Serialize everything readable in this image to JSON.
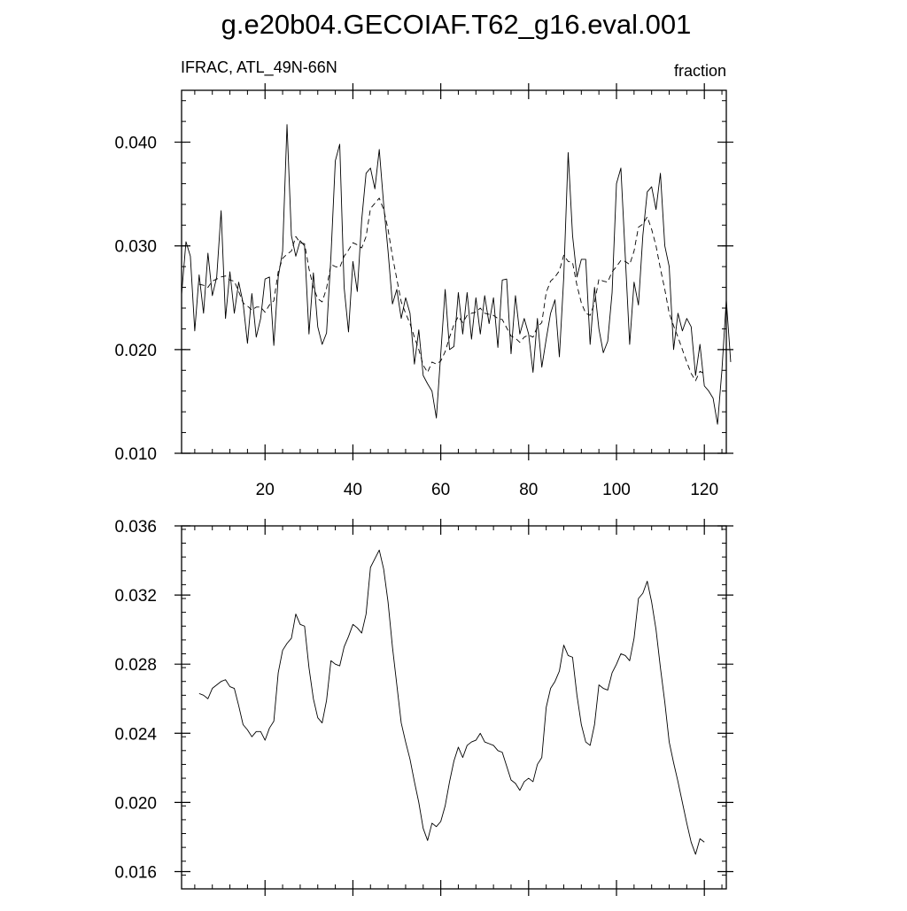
{
  "header": {
    "title": "g.e20b04.GECOIAF.T62_g16.eval.001"
  },
  "chart_data": [
    {
      "type": "line",
      "left_label": "IFRAC, ATL_49N-66N",
      "right_label": "fraction",
      "xlim": [
        1,
        125
      ],
      "ylim": [
        0.01,
        0.045
      ],
      "x_ticks": [
        20,
        40,
        60,
        80,
        100,
        120
      ],
      "y_ticks": [
        0.01,
        0.02,
        0.03,
        0.04
      ],
      "x_tick_labels": [
        "20",
        "40",
        "60",
        "80",
        "100",
        "120"
      ],
      "y_tick_labels": [
        "0.010",
        "0.020",
        "0.030",
        "0.040"
      ],
      "series": [
        {
          "style": "solid",
          "x_start": 1,
          "values": [
            0.0253,
            0.0304,
            0.029,
            0.0218,
            0.0272,
            0.0235,
            0.0293,
            0.0252,
            0.027,
            0.0334,
            0.023,
            0.0275,
            0.0235,
            0.0265,
            0.0245,
            0.0206,
            0.0254,
            0.0212,
            0.023,
            0.0268,
            0.027,
            0.0204,
            0.027,
            0.0295,
            0.0417,
            0.031,
            0.029,
            0.0305,
            0.03,
            0.0215,
            0.0274,
            0.0222,
            0.0205,
            0.0216,
            0.029,
            0.0382,
            0.0398,
            0.026,
            0.0217,
            0.0285,
            0.0256,
            0.0325,
            0.037,
            0.0375,
            0.0355,
            0.0393,
            0.034,
            0.0295,
            0.0244,
            0.0258,
            0.023,
            0.025,
            0.0235,
            0.0186,
            0.0219,
            0.0175,
            0.0167,
            0.016,
            0.0134,
            0.0196,
            0.0258,
            0.02,
            0.0203,
            0.0255,
            0.0215,
            0.0255,
            0.021,
            0.025,
            0.0215,
            0.0252,
            0.0225,
            0.025,
            0.0202,
            0.0267,
            0.0268,
            0.0196,
            0.0252,
            0.0215,
            0.023,
            0.0215,
            0.0178,
            0.023,
            0.0183,
            0.021,
            0.0235,
            0.0248,
            0.0193,
            0.027,
            0.039,
            0.031,
            0.027,
            0.0287,
            0.0287,
            0.0205,
            0.026,
            0.022,
            0.0197,
            0.0208,
            0.0255,
            0.036,
            0.0375,
            0.029,
            0.0205,
            0.0265,
            0.0243,
            0.031,
            0.0352,
            0.0357,
            0.0335,
            0.037,
            0.03,
            0.028,
            0.02,
            0.0235,
            0.0218,
            0.023,
            0.0222,
            0.0175,
            0.0205,
            0.0165,
            0.016,
            0.0153,
            0.0128,
            0.018,
            0.0248,
            0.0188
          ]
        },
        {
          "style": "dashed",
          "x_start": 5,
          "values": [
            0.0263,
            0.0262,
            0.026,
            0.0266,
            0.0268,
            0.027,
            0.0271,
            0.0267,
            0.0266,
            0.0256,
            0.0245,
            0.0242,
            0.0238,
            0.0241,
            0.0241,
            0.0236,
            0.0243,
            0.0247,
            0.0275,
            0.0288,
            0.0292,
            0.0295,
            0.0309,
            0.0303,
            0.0302,
            0.0278,
            0.026,
            0.0249,
            0.0246,
            0.0259,
            0.0282,
            0.028,
            0.0279,
            0.029,
            0.0296,
            0.0303,
            0.0301,
            0.0298,
            0.0309,
            0.0336,
            0.0341,
            0.0346,
            0.0335,
            0.0316,
            0.029,
            0.0268,
            0.0246,
            0.0235,
            0.0225,
            0.0212,
            0.02,
            0.0185,
            0.0178,
            0.0188,
            0.0186,
            0.0189,
            0.0198,
            0.0212,
            0.0224,
            0.0232,
            0.0226,
            0.0233,
            0.0235,
            0.0236,
            0.024,
            0.0235,
            0.0234,
            0.0233,
            0.023,
            0.0229,
            0.0221,
            0.0213,
            0.0211,
            0.0207,
            0.0212,
            0.0214,
            0.0212,
            0.0222,
            0.0226,
            0.0255,
            0.0266,
            0.027,
            0.0276,
            0.0291,
            0.0285,
            0.0284,
            0.0262,
            0.0245,
            0.0235,
            0.0233,
            0.0245,
            0.0268,
            0.0266,
            0.0265,
            0.0275,
            0.028,
            0.0286,
            0.0285,
            0.0282,
            0.0295,
            0.0318,
            0.0321,
            0.0328,
            0.0316,
            0.03,
            0.0278,
            0.0258,
            0.0235,
            0.0223,
            0.0212,
            0.02,
            0.0188,
            0.0177,
            0.017,
            0.0179,
            0.0177
          ]
        }
      ]
    },
    {
      "type": "line",
      "xlim": [
        1,
        125
      ],
      "ylim": [
        0.015,
        0.036
      ],
      "y_ticks": [
        0.016,
        0.02,
        0.024,
        0.028,
        0.032,
        0.036
      ],
      "y_tick_labels": [
        "0.016",
        "0.020",
        "0.024",
        "0.028",
        "0.032",
        "0.036"
      ],
      "x_ticks": [
        20,
        40,
        60,
        80,
        100,
        120
      ],
      "series": [
        {
          "style": "solid",
          "x_start": 5,
          "values": [
            0.0263,
            0.0262,
            0.026,
            0.0266,
            0.0268,
            0.027,
            0.0271,
            0.0267,
            0.0266,
            0.0256,
            0.0245,
            0.0242,
            0.0238,
            0.0241,
            0.0241,
            0.0236,
            0.0243,
            0.0247,
            0.0275,
            0.0288,
            0.0292,
            0.0295,
            0.0309,
            0.0303,
            0.0302,
            0.0278,
            0.026,
            0.0249,
            0.0246,
            0.0259,
            0.0282,
            0.028,
            0.0279,
            0.029,
            0.0296,
            0.0303,
            0.0301,
            0.0298,
            0.0309,
            0.0336,
            0.0341,
            0.0346,
            0.0335,
            0.0316,
            0.029,
            0.0268,
            0.0246,
            0.0235,
            0.0225,
            0.0212,
            0.02,
            0.0185,
            0.0178,
            0.0188,
            0.0186,
            0.0189,
            0.0198,
            0.0212,
            0.0224,
            0.0232,
            0.0226,
            0.0233,
            0.0235,
            0.0236,
            0.024,
            0.0235,
            0.0234,
            0.0233,
            0.023,
            0.0229,
            0.0221,
            0.0213,
            0.0211,
            0.0207,
            0.0212,
            0.0214,
            0.0212,
            0.0222,
            0.0226,
            0.0255,
            0.0266,
            0.027,
            0.0276,
            0.0291,
            0.0285,
            0.0284,
            0.0262,
            0.0245,
            0.0235,
            0.0233,
            0.0245,
            0.0268,
            0.0266,
            0.0265,
            0.0275,
            0.028,
            0.0286,
            0.0285,
            0.0282,
            0.0295,
            0.0318,
            0.0321,
            0.0328,
            0.0316,
            0.03,
            0.0278,
            0.0258,
            0.0235,
            0.0223,
            0.0212,
            0.02,
            0.0188,
            0.0177,
            0.017,
            0.0179,
            0.0177
          ]
        }
      ]
    }
  ]
}
